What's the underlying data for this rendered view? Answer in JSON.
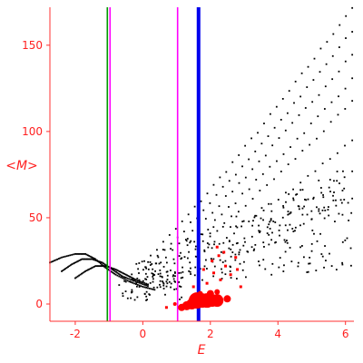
{
  "chart_data": {
    "type": "scatter",
    "title": "",
    "xlabel": "E",
    "ylabel": "<M>",
    "xlim": [
      -2.75,
      6.25
    ],
    "ylim": [
      -10,
      172
    ],
    "x_ticks": [
      -2,
      0,
      2,
      4,
      6
    ],
    "y_ticks": [
      0,
      50,
      100,
      150
    ],
    "x_tick_labels": [
      "-2",
      "0",
      "2",
      "4",
      "6"
    ],
    "y_tick_labels": [
      "0",
      "50",
      "100",
      "150"
    ],
    "grid": false,
    "legend": "none",
    "colors": {
      "axis": "#ff3030",
      "points": "#000000",
      "highlight": "#ff0000",
      "line_green": "#009900",
      "line_magenta": "#ff00ff",
      "line_blue": "#0000ee"
    },
    "vertical_lines": [
      {
        "x": -1.05,
        "color": "#009900"
      },
      {
        "x": -0.97,
        "color": "#ff00ff"
      },
      {
        "x": 1.03,
        "color": "#ff00ff"
      },
      {
        "x": 1.65,
        "color": "#0000ee"
      }
    ],
    "branches": [
      {
        "x0": -0.7,
        "x1": 6.2,
        "y1": 172,
        "n": 38
      },
      {
        "x0": -0.5,
        "x1": 6.2,
        "y1": 158,
        "n": 36
      },
      {
        "x0": -0.3,
        "x1": 6.2,
        "y1": 145,
        "n": 34
      },
      {
        "x0": -0.1,
        "x1": 6.2,
        "y1": 130,
        "n": 32
      },
      {
        "x0": 0.1,
        "x1": 6.2,
        "y1": 117,
        "n": 30
      },
      {
        "x0": 0.3,
        "x1": 6.2,
        "y1": 95,
        "n": 28
      },
      {
        "x0": 0.5,
        "x1": 6.2,
        "y1": 77,
        "n": 26
      },
      {
        "x0": 0.7,
        "x1": 6.2,
        "y1": 62,
        "n": 24
      }
    ],
    "left_arcs": [
      {
        "x": [
          -2.75,
          -2.4,
          -2.0,
          -1.7,
          -1.4,
          -1.1,
          -0.8,
          -0.4,
          0.0,
          0.4
        ],
        "y": [
          24,
          27,
          29,
          29,
          26,
          21,
          17,
          13,
          10,
          8
        ]
      },
      {
        "x": [
          -2.4,
          -2.1,
          -1.8,
          -1.5,
          -1.2,
          -0.9,
          -0.6,
          -0.2,
          0.2
        ],
        "y": [
          19,
          23,
          26,
          26,
          24,
          20,
          16,
          13,
          10
        ]
      },
      {
        "x": [
          -2.0,
          -1.7,
          -1.4,
          -1.1,
          -0.8,
          -0.5,
          -0.2,
          0.2
        ],
        "y": [
          15,
          19,
          22,
          22,
          20,
          17,
          14,
          11
        ]
      }
    ],
    "scatter_cloud": {
      "x_range": [
        -0.2,
        6.2
      ],
      "y_base": 10,
      "y_spread": 45,
      "count": 260
    },
    "red_points": [
      {
        "x": 1.6,
        "y": 2,
        "s": 9
      },
      {
        "x": 1.75,
        "y": 2,
        "s": 8
      },
      {
        "x": 1.9,
        "y": 2,
        "s": 8
      },
      {
        "x": 2.05,
        "y": 2,
        "s": 7
      },
      {
        "x": 2.2,
        "y": 2,
        "s": 7
      },
      {
        "x": 1.45,
        "y": 0,
        "s": 6
      },
      {
        "x": 1.3,
        "y": -1,
        "s": 5
      },
      {
        "x": 1.15,
        "y": -2,
        "s": 4
      },
      {
        "x": 2.5,
        "y": 3,
        "s": 4
      },
      {
        "x": 2.0,
        "y": 6,
        "s": 4
      },
      {
        "x": 1.7,
        "y": 6,
        "s": 3
      },
      {
        "x": 2.2,
        "y": 7,
        "s": 3
      },
      {
        "x": 0.95,
        "y": 0,
        "s": 2
      },
      {
        "x": 0.7,
        "y": -2,
        "s": 1.5
      },
      {
        "x": 1.9,
        "y": 12,
        "s": 1.5
      },
      {
        "x": 2.3,
        "y": 14,
        "s": 1.5
      },
      {
        "x": 2.6,
        "y": 17,
        "s": 1.5
      },
      {
        "x": 2.1,
        "y": 18,
        "s": 1.5
      },
      {
        "x": 2.8,
        "y": 20,
        "s": 1.5
      },
      {
        "x": 2.45,
        "y": 22,
        "s": 1.5
      },
      {
        "x": 2.05,
        "y": 25,
        "s": 1.5
      },
      {
        "x": 2.75,
        "y": 27,
        "s": 1.5
      },
      {
        "x": 1.8,
        "y": 20,
        "s": 1.5
      },
      {
        "x": 2.4,
        "y": 30,
        "s": 1.5
      },
      {
        "x": 2.9,
        "y": 10,
        "s": 1.5
      },
      {
        "x": 1.5,
        "y": 10,
        "s": 1.5
      },
      {
        "x": 2.2,
        "y": 33,
        "s": 1.5
      },
      {
        "x": 2.25,
        "y": 28,
        "s": 1.5
      }
    ]
  }
}
